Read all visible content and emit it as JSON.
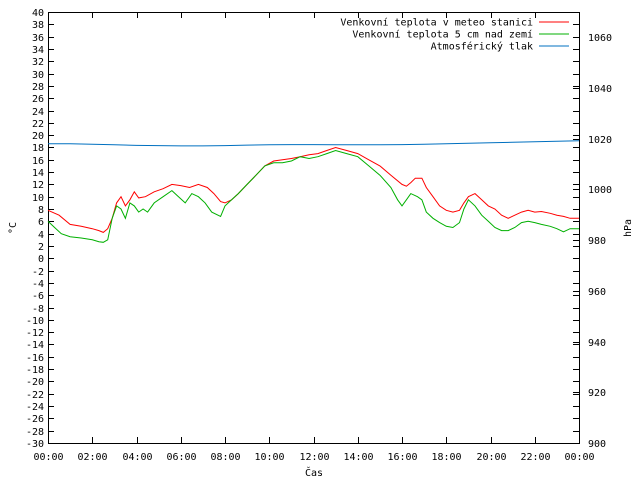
{
  "chart_data": {
    "type": "line",
    "xlabel": "Čas",
    "ylabel": "°C",
    "y2label": "hPa",
    "xlim": [
      0,
      24
    ],
    "ylim": [
      -30,
      40
    ],
    "y2lim": [
      900,
      1070
    ],
    "x_tick_labels": [
      "00:00",
      "02:00",
      "04:00",
      "06:00",
      "08:00",
      "10:00",
      "12:00",
      "14:00",
      "16:00",
      "18:00",
      "20:00",
      "22:00",
      "00:00"
    ],
    "y_ticks": [
      40,
      38,
      36,
      34,
      32,
      30,
      28,
      26,
      24,
      22,
      20,
      18,
      16,
      14,
      12,
      10,
      8,
      6,
      4,
      2,
      0,
      -2,
      -4,
      -6,
      -8,
      -10,
      -12,
      -14,
      -16,
      -18,
      -20,
      -22,
      -24,
      -26,
      -28,
      -30
    ],
    "y2_ticks": [
      1060,
      1040,
      1020,
      1000,
      980,
      960,
      940,
      920,
      900
    ],
    "grid": false,
    "legend_position": "top-right",
    "series": [
      {
        "name": "Venkovní teplota v meteo stanici",
        "color": "#ff0000",
        "axis": "left",
        "points": [
          [
            0,
            7.8
          ],
          [
            0.5,
            7
          ],
          [
            1,
            5.5
          ],
          [
            1.5,
            5.2
          ],
          [
            2,
            4.8
          ],
          [
            2.3,
            4.5
          ],
          [
            2.5,
            4.2
          ],
          [
            2.7,
            4.8
          ],
          [
            2.9,
            6.5
          ],
          [
            3.1,
            9
          ],
          [
            3.3,
            10
          ],
          [
            3.5,
            8.5
          ],
          [
            3.7,
            9.5
          ],
          [
            3.9,
            10.8
          ],
          [
            4.1,
            9.8
          ],
          [
            4.4,
            10
          ],
          [
            4.8,
            10.8
          ],
          [
            5.2,
            11.3
          ],
          [
            5.6,
            12
          ],
          [
            6,
            11.8
          ],
          [
            6.4,
            11.5
          ],
          [
            6.8,
            12
          ],
          [
            7.2,
            11.5
          ],
          [
            7.5,
            10.5
          ],
          [
            7.8,
            9.2
          ],
          [
            8,
            9
          ],
          [
            8.3,
            9.5
          ],
          [
            8.6,
            10.5
          ],
          [
            9,
            12
          ],
          [
            9.4,
            13.5
          ],
          [
            9.8,
            15
          ],
          [
            10.2,
            15.8
          ],
          [
            10.6,
            16
          ],
          [
            11,
            16.2
          ],
          [
            11.4,
            16.5
          ],
          [
            11.8,
            16.8
          ],
          [
            12.2,
            17
          ],
          [
            12.6,
            17.5
          ],
          [
            13,
            18
          ],
          [
            13.5,
            17.5
          ],
          [
            14,
            17
          ],
          [
            14.5,
            16
          ],
          [
            15,
            15
          ],
          [
            15.5,
            13.5
          ],
          [
            16,
            12
          ],
          [
            16.2,
            11.7
          ],
          [
            16.4,
            12.3
          ],
          [
            16.6,
            13
          ],
          [
            16.9,
            13
          ],
          [
            17.1,
            11.5
          ],
          [
            17.4,
            10
          ],
          [
            17.7,
            8.5
          ],
          [
            18,
            7.8
          ],
          [
            18.3,
            7.5
          ],
          [
            18.6,
            7.8
          ],
          [
            18.8,
            9
          ],
          [
            19,
            10
          ],
          [
            19.3,
            10.5
          ],
          [
            19.6,
            9.5
          ],
          [
            19.9,
            8.5
          ],
          [
            20.2,
            8
          ],
          [
            20.5,
            7
          ],
          [
            20.8,
            6.5
          ],
          [
            21.1,
            7
          ],
          [
            21.4,
            7.5
          ],
          [
            21.7,
            7.8
          ],
          [
            22,
            7.5
          ],
          [
            22.3,
            7.6
          ],
          [
            22.7,
            7.3
          ],
          [
            23,
            7
          ],
          [
            23.3,
            6.8
          ],
          [
            23.6,
            6.5
          ],
          [
            24,
            6.5
          ]
        ]
      },
      {
        "name": "Venkovní teplota 5 cm nad zemí",
        "color": "#00b000",
        "axis": "left",
        "points": [
          [
            0,
            6
          ],
          [
            0.3,
            5
          ],
          [
            0.6,
            4
          ],
          [
            1,
            3.5
          ],
          [
            1.5,
            3.3
          ],
          [
            2,
            3
          ],
          [
            2.3,
            2.7
          ],
          [
            2.5,
            2.6
          ],
          [
            2.7,
            3
          ],
          [
            2.9,
            6.5
          ],
          [
            3.1,
            8.5
          ],
          [
            3.3,
            8
          ],
          [
            3.5,
            6.5
          ],
          [
            3.7,
            9
          ],
          [
            3.9,
            8.5
          ],
          [
            4.1,
            7.5
          ],
          [
            4.3,
            8
          ],
          [
            4.5,
            7.5
          ],
          [
            4.8,
            9
          ],
          [
            5.2,
            10
          ],
          [
            5.6,
            11
          ],
          [
            5.9,
            10
          ],
          [
            6.2,
            9
          ],
          [
            6.5,
            10.5
          ],
          [
            6.8,
            10
          ],
          [
            7.1,
            9
          ],
          [
            7.4,
            7.5
          ],
          [
            7.8,
            6.8
          ],
          [
            8,
            8.5
          ],
          [
            8.3,
            9.5
          ],
          [
            8.6,
            10.5
          ],
          [
            9,
            12
          ],
          [
            9.4,
            13.5
          ],
          [
            9.8,
            15
          ],
          [
            10.2,
            15.5
          ],
          [
            10.6,
            15.5
          ],
          [
            11,
            15.8
          ],
          [
            11.4,
            16.5
          ],
          [
            11.8,
            16.2
          ],
          [
            12.2,
            16.5
          ],
          [
            12.6,
            17
          ],
          [
            13,
            17.5
          ],
          [
            13.5,
            17
          ],
          [
            14,
            16.5
          ],
          [
            14.5,
            15
          ],
          [
            15,
            13.5
          ],
          [
            15.5,
            11.5
          ],
          [
            15.8,
            9.5
          ],
          [
            16,
            8.5
          ],
          [
            16.2,
            9.5
          ],
          [
            16.4,
            10.5
          ],
          [
            16.7,
            10
          ],
          [
            16.9,
            9.5
          ],
          [
            17.1,
            7.5
          ],
          [
            17.4,
            6.5
          ],
          [
            17.7,
            5.8
          ],
          [
            18,
            5.2
          ],
          [
            18.3,
            5
          ],
          [
            18.6,
            5.8
          ],
          [
            18.8,
            8
          ],
          [
            19,
            9.5
          ],
          [
            19.3,
            8.5
          ],
          [
            19.6,
            7
          ],
          [
            19.9,
            6
          ],
          [
            20.2,
            5
          ],
          [
            20.5,
            4.5
          ],
          [
            20.8,
            4.5
          ],
          [
            21.1,
            5
          ],
          [
            21.4,
            5.8
          ],
          [
            21.7,
            6
          ],
          [
            22,
            5.8
          ],
          [
            22.3,
            5.5
          ],
          [
            22.7,
            5.2
          ],
          [
            23,
            4.8
          ],
          [
            23.3,
            4.3
          ],
          [
            23.6,
            4.8
          ],
          [
            24,
            4.8
          ]
        ]
      },
      {
        "name": "Atmosférický tlak",
        "color": "#0070c0",
        "axis": "right",
        "points": [
          [
            0,
            1018
          ],
          [
            1,
            1018
          ],
          [
            2,
            1017.8
          ],
          [
            3,
            1017.6
          ],
          [
            4,
            1017.4
          ],
          [
            5,
            1017.3
          ],
          [
            6,
            1017.2
          ],
          [
            7,
            1017.2
          ],
          [
            8,
            1017.3
          ],
          [
            9,
            1017.5
          ],
          [
            10,
            1017.6
          ],
          [
            11,
            1017.7
          ],
          [
            12,
            1017.7
          ],
          [
            13,
            1017.6
          ],
          [
            14,
            1017.6
          ],
          [
            15,
            1017.6
          ],
          [
            16,
            1017.7
          ],
          [
            17,
            1017.8
          ],
          [
            18,
            1018
          ],
          [
            19,
            1018.2
          ],
          [
            20,
            1018.4
          ],
          [
            21,
            1018.6
          ],
          [
            22,
            1018.8
          ],
          [
            23,
            1019
          ],
          [
            24,
            1019.2
          ]
        ]
      }
    ]
  }
}
